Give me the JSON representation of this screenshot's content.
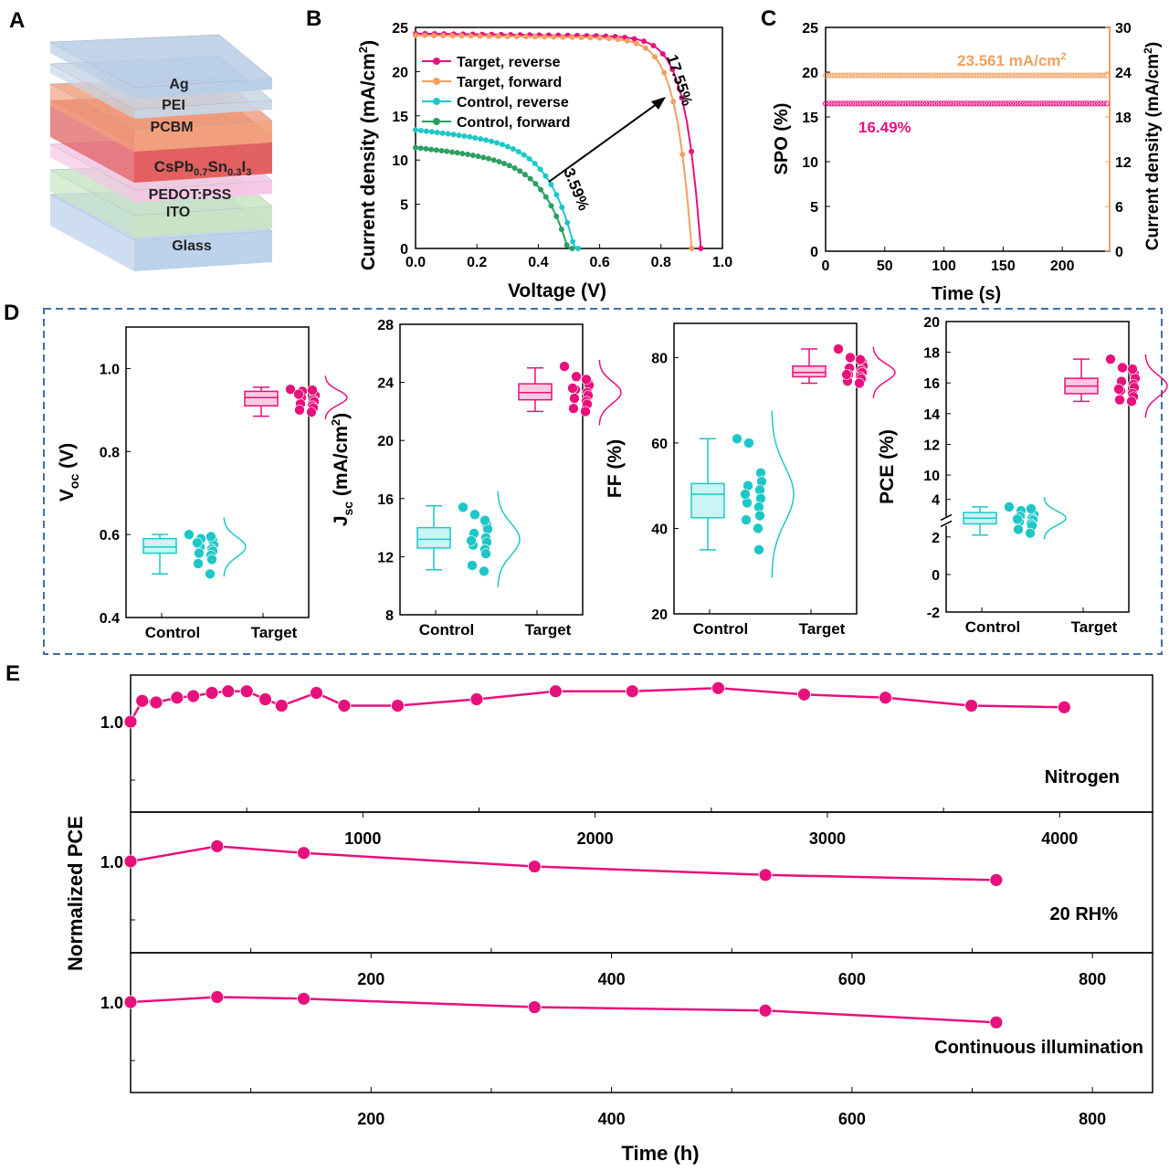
{
  "panel_labels": {
    "a": "A",
    "b": "B",
    "c": "C",
    "d": "D",
    "e": "E"
  },
  "stack": {
    "layers": [
      {
        "name": "Ag",
        "color": "#b8cde6"
      },
      {
        "name": "PEI",
        "color": "#c9d6e6"
      },
      {
        "name": "PCBM",
        "color": "#f2a27e"
      },
      {
        "name": "CsPb0.7Sn0.3I3",
        "color": "#e05a58"
      },
      {
        "name": "PEDOT:PSS",
        "color": "#f5c6e6"
      },
      {
        "name": "ITO",
        "color": "#c8e4c4"
      },
      {
        "name": "Glass",
        "color": "#b9d0ea"
      }
    ],
    "pero_base": "CsPb",
    "pero_sub1": "0.7",
    "pero_mid": "Sn",
    "pero_sub2": "0.3",
    "pero_tail": "I",
    "pero_sub3": "3"
  },
  "colors": {
    "target": "#e8107c",
    "target_fwd": "#f0a060",
    "control_rev": "#1ec7c7",
    "control_fwd": "#2aa060",
    "pink_box": "#f7a8cc",
    "cyan_box": "#a8ecec"
  },
  "chart_data": [
    {
      "id": "B",
      "type": "line",
      "xlabel": "Voltage (V)",
      "ylabel": "Current density (mA/cm",
      "ylabel_sup": "2",
      "ylabel_close": ")",
      "xlim": [
        0,
        1.0
      ],
      "ylim": [
        0,
        25
      ],
      "xticks": [
        "0.0",
        "0.2",
        "0.4",
        "0.6",
        "0.8",
        "1.0"
      ],
      "yticks": [
        "0",
        "5",
        "10",
        "15",
        "20",
        "25"
      ],
      "series": [
        {
          "name": "Target, reverse",
          "jsc": 24.3,
          "voc": 0.93,
          "n": 9
        },
        {
          "name": "Target, forward",
          "jsc": 24.1,
          "voc": 0.9,
          "n": 8
        },
        {
          "name": "Control, reverse",
          "jsc": 13.4,
          "voc": 0.53,
          "n": 6
        },
        {
          "name": "Control, forward",
          "jsc": 11.4,
          "voc": 0.51,
          "n": 5
        }
      ],
      "annotations": {
        "high": "17.55%",
        "low": "3.59%"
      }
    },
    {
      "id": "C",
      "type": "line",
      "xlabel": "Time (s)",
      "ylabel": "SPO (%)",
      "ylabel_right": "Current density (mA/cm",
      "ylabel_right_sup": "2",
      "ylabel_right_close": ")",
      "xlim": [
        0,
        240
      ],
      "ylim": [
        0,
        25
      ],
      "y2lim": [
        0,
        30
      ],
      "xticks": [
        "0",
        "50",
        "100",
        "150",
        "200"
      ],
      "yticks": [
        "0",
        "5",
        "10",
        "15",
        "20",
        "25"
      ],
      "y2ticks": [
        "0",
        "6",
        "12",
        "18",
        "24",
        "30"
      ],
      "spo_value": 16.49,
      "jd_value": 23.561,
      "spo_label": "16.49%",
      "jd_label": "23.561 mA/cm",
      "jd_label_sup": "2"
    },
    {
      "id": "D",
      "type": "box",
      "categories": [
        "Control",
        "Target"
      ],
      "subplots": [
        {
          "label_main": "V",
          "label_sub": "oc",
          "label_tail": " (V)",
          "ylim": [
            0.4,
            1.1
          ],
          "yticks": [
            "0.4",
            "0.6",
            "0.8",
            "1.0"
          ],
          "ytick_values": [
            0.4,
            0.6,
            0.8,
            1.0
          ],
          "control": {
            "min": 0.505,
            "q1": 0.555,
            "median": 0.57,
            "q3": 0.59,
            "max": 0.6,
            "points": [
              0.6,
              0.59,
              0.585,
              0.575,
              0.57,
              0.565,
              0.56,
              0.555,
              0.55,
              0.54,
              0.53,
              0.505,
              0.595,
              0.58
            ]
          },
          "target": {
            "min": 0.885,
            "q1": 0.91,
            "median": 0.93,
            "q3": 0.945,
            "max": 0.955,
            "points": [
              0.95,
              0.945,
              0.94,
              0.935,
              0.93,
              0.925,
              0.92,
              0.915,
              0.91,
              0.905,
              0.9,
              0.895,
              0.948,
              0.938
            ]
          }
        },
        {
          "label_main": "J",
          "label_sub": "sc",
          "label_tail": " (mA/cm",
          "label_sup": "2",
          "label_close": ")",
          "ylim": [
            8,
            28
          ],
          "yticks": [
            "8",
            "12",
            "16",
            "20",
            "24",
            "28"
          ],
          "ytick_values": [
            8,
            12,
            16,
            20,
            24,
            28
          ],
          "control": {
            "min": 11.1,
            "q1": 12.6,
            "median": 13.2,
            "q3": 14.0,
            "max": 15.5,
            "points": [
              15.4,
              14.9,
              14.2,
              13.9,
              13.6,
              13.3,
              13.0,
              12.8,
              12.5,
              12.2,
              11.4,
              11.0,
              14.5,
              13.1
            ]
          },
          "target": {
            "min": 22.0,
            "q1": 22.8,
            "median": 23.3,
            "q3": 23.9,
            "max": 25.0,
            "points": [
              25.1,
              24.4,
              24.0,
              23.8,
              23.5,
              23.3,
              23.1,
              22.9,
              22.7,
              22.5,
              22.2,
              22.0,
              24.2,
              23.6
            ]
          }
        },
        {
          "label_main": "FF (%)",
          "ylim": [
            20,
            88
          ],
          "yticks": [
            "20",
            "40",
            "60",
            "80"
          ],
          "ytick_values": [
            20,
            40,
            60,
            80
          ],
          "control": {
            "min": 35,
            "q1": 42.5,
            "median": 48,
            "q3": 50.5,
            "max": 61,
            "points": [
              61,
              60,
              53,
              51,
              50,
              49,
              47,
              46,
              45,
              43,
              42,
              40,
              35,
              48
            ]
          },
          "target": {
            "min": 74,
            "q1": 75.5,
            "median": 76.5,
            "q3": 78,
            "max": 82,
            "points": [
              82,
              80,
              79,
              78,
              77.5,
              77,
              76.5,
              76,
              75.5,
              75,
              74.5,
              74,
              79.5,
              76
            ]
          }
        },
        {
          "label_main": "PCE (%)",
          "ylim": [
            -2,
            20
          ],
          "yticks": [
            "-2",
            "0",
            "2",
            "4",
            "10",
            "12",
            "14",
            "16",
            "18",
            "20"
          ],
          "ytick_values": [
            -2,
            0,
            2,
            4,
            10,
            12,
            14,
            16,
            18,
            20
          ],
          "control": {
            "min": 2.1,
            "q1": 2.7,
            "median": 3.0,
            "q3": 3.3,
            "max": 3.6,
            "points": [
              3.6,
              3.4,
              3.3,
              3.2,
              3.1,
              3.0,
              2.9,
              2.8,
              2.7,
              2.6,
              2.4,
              2.2,
              3.5,
              2.95
            ]
          },
          "target": {
            "min": 14.8,
            "q1": 15.3,
            "median": 15.8,
            "q3": 16.3,
            "max": 17.55,
            "points": [
              17.55,
              17.0,
              16.6,
              16.3,
              16.1,
              15.9,
              15.7,
              15.5,
              15.3,
              15.1,
              14.9,
              14.8,
              16.9,
              15.6
            ]
          }
        }
      ]
    },
    {
      "id": "E",
      "type": "line",
      "ylabel": "Normalized PCE",
      "xlabel": "Time (h)",
      "rows": [
        {
          "label": "Nitrogen",
          "xlim": [
            0,
            4400
          ],
          "xticks": [
            "1000",
            "2000",
            "3000",
            "4000"
          ],
          "xtick_values": [
            1000,
            2000,
            3000,
            4000
          ],
          "ytick": "1.0",
          "x": [
            0,
            50,
            110,
            200,
            270,
            350,
            420,
            500,
            580,
            650,
            800,
            920,
            1150,
            1490,
            1830,
            2160,
            2530,
            2900,
            3250,
            3620,
            4020
          ],
          "y": [
            1.0,
            1.13,
            1.12,
            1.15,
            1.16,
            1.18,
            1.19,
            1.19,
            1.14,
            1.1,
            1.18,
            1.1,
            1.1,
            1.14,
            1.19,
            1.19,
            1.21,
            1.17,
            1.15,
            1.1,
            1.09
          ]
        },
        {
          "label": "20 RH%",
          "xlim": [
            0,
            850
          ],
          "xticks": [
            "200",
            "400",
            "600",
            "800"
          ],
          "xtick_values": [
            200,
            400,
            600,
            800
          ],
          "ytick": "1.0",
          "x": [
            0,
            72,
            144,
            336,
            528,
            720
          ],
          "y": [
            1.0,
            1.09,
            1.05,
            0.97,
            0.92,
            0.89
          ]
        },
        {
          "label": "Continuous illumination",
          "xlim": [
            0,
            850
          ],
          "xticks": [
            "200",
            "400",
            "600",
            "800"
          ],
          "xtick_values": [
            200,
            400,
            600,
            800
          ],
          "ytick": "1.0",
          "x": [
            0,
            72,
            144,
            336,
            528,
            720
          ],
          "y": [
            1.0,
            1.03,
            1.02,
            0.97,
            0.95,
            0.88
          ]
        }
      ]
    }
  ]
}
